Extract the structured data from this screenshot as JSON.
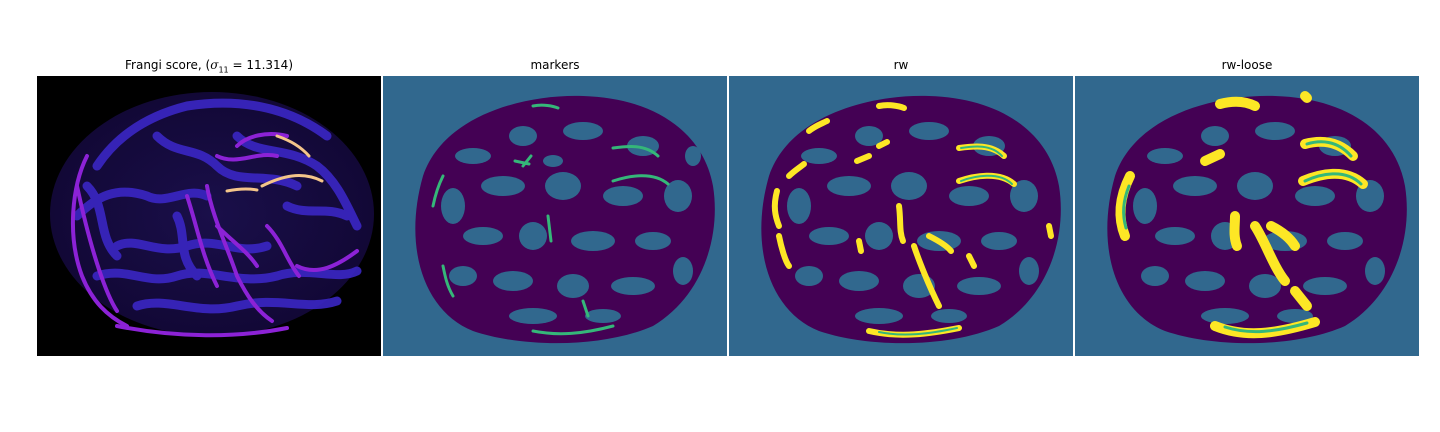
{
  "figure": {
    "panels": [
      {
        "title_prefix": "Frangi score, (",
        "title_math": "σ",
        "title_sub": "11",
        "title_suffix": " = 11.314)",
        "kind": "frangi-heatmap"
      },
      {
        "title": "markers",
        "kind": "label-map"
      },
      {
        "title": "rw",
        "kind": "segmentation"
      },
      {
        "title": "rw-loose",
        "kind": "segmentation-loose"
      }
    ]
  },
  "colors": {
    "frangi_background": "#000000",
    "frangi_low": "#2c1f9c",
    "frangi_mid": "#8a1fd0",
    "frangi_high": "#f2d07a",
    "label_background": "#31688e",
    "label_tissue": "#440154",
    "label_marker": "#35b779",
    "label_vessel": "#fde725"
  }
}
